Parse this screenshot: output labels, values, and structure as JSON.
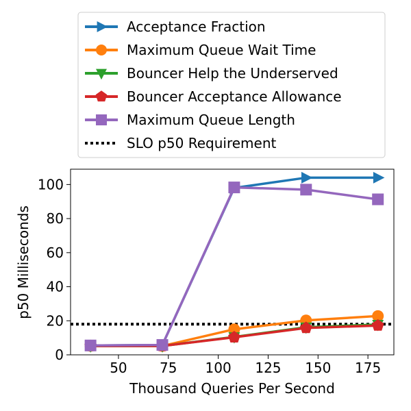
{
  "chart_data": {
    "type": "line",
    "title": "",
    "xlabel": "Thousand Queries Per Second",
    "ylabel": "p50 Milliseconds",
    "xlim": [
      26,
      188
    ],
    "ylim": [
      0,
      109
    ],
    "xticks": [
      50,
      75,
      100,
      125,
      150,
      175
    ],
    "yticks": [
      0,
      20,
      40,
      60,
      80,
      100
    ],
    "x": [
      36,
      72,
      108,
      144,
      180
    ],
    "legend_position": "above plot",
    "series": [
      {
        "name": "Acceptance Fraction",
        "color": "#1f77b4",
        "marker": "triangle-right",
        "values": [
          5.5,
          5.8,
          98,
          104,
          104
        ]
      },
      {
        "name": "Maximum Queue Wait Time",
        "color": "#ff7f0e",
        "marker": "circle",
        "values": [
          5.2,
          5.2,
          15.0,
          20.2,
          22.8
        ]
      },
      {
        "name": "Bouncer Help the Underserved",
        "color": "#2ca02c",
        "marker": "triangle-down",
        "values": [
          5.2,
          5.2,
          10.5,
          16.2,
          17.8
        ]
      },
      {
        "name": "Bouncer Acceptance Allowance",
        "color": "#d62728",
        "marker": "pentagon",
        "values": [
          5.2,
          5.2,
          10.3,
          15.8,
          17.2
        ]
      },
      {
        "name": "Maximum Queue Length",
        "color": "#9467bd",
        "marker": "square",
        "values": [
          5.5,
          5.8,
          98.3,
          97.0,
          91.3
        ]
      }
    ],
    "reference_lines": [
      {
        "name": "SLO p50 Requirement",
        "value": 18,
        "style": "dotted",
        "color": "#000000"
      }
    ]
  }
}
